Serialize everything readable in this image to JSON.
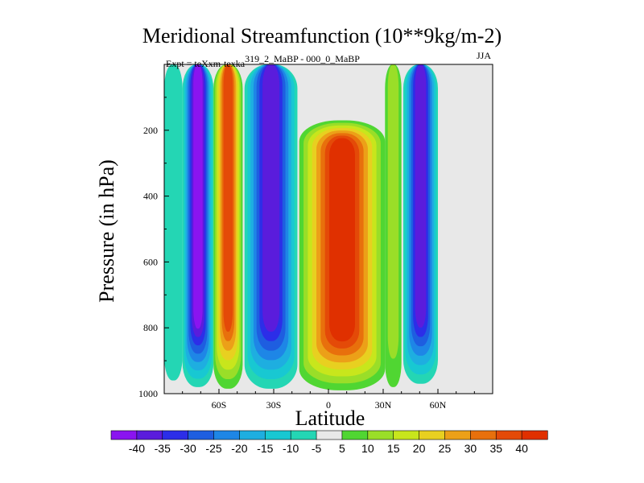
{
  "chart_data": {
    "type": "heatmap",
    "title": "Meridional Streamfunction (10**9kg/m-2)",
    "subtitle_left": "Expt = teXxm-texka",
    "subtitle_left_sup": "319_2_MaBP - 000_0_MaBP",
    "subtitle_right": "JJA",
    "xlabel": "Latitude",
    "ylabel": "Pressure (in hPa)",
    "x_ticks": [
      "60S",
      "30S",
      "0",
      "30N",
      "60N"
    ],
    "x_tick_values": [
      -60,
      -30,
      0,
      30,
      60
    ],
    "xlim": [
      -90,
      90
    ],
    "y_ticks": [
      "200",
      "400",
      "600",
      "800",
      "1000"
    ],
    "y_tick_values": [
      200,
      400,
      600,
      800,
      1000
    ],
    "ylim": [
      0,
      1000
    ],
    "y_inverted": true,
    "colorbar": {
      "labels": [
        "-40",
        "-35",
        "-30",
        "-25",
        "-20",
        "-15",
        "-10",
        "-5",
        "5",
        "10",
        "15",
        "20",
        "25",
        "30",
        "35",
        "40"
      ],
      "colors": [
        "#8a14f0",
        "#5a1cdc",
        "#2c2ee8",
        "#1e5ee0",
        "#1e86e6",
        "#1eaee0",
        "#18c8d2",
        "#24d6b4",
        "#e8e8e8",
        "#50d632",
        "#9ade28",
        "#c8e61c",
        "#e8d020",
        "#eca018",
        "#e8700c",
        "#e44a08",
        "#e03000"
      ]
    },
    "regions": [
      {
        "name": "far-south-column",
        "lat_min": -90,
        "lat_max": -80,
        "p_top": 0,
        "p_bottom": 960,
        "value": -5
      },
      {
        "name": "southern-negative-cell",
        "lat_min": -80,
        "lat_max": -63,
        "p_top": 0,
        "p_bottom": 980,
        "value": -40
      },
      {
        "name": "southern-positive-cell",
        "lat_min": -63,
        "lat_max": -47,
        "p_top": 0,
        "p_bottom": 985,
        "value": 35
      },
      {
        "name": "midlat-negative-cell",
        "lat_min": -46,
        "lat_max": -17,
        "p_top": 0,
        "p_bottom": 985,
        "value": -35
      },
      {
        "name": "hadley-cell",
        "lat_min": -16,
        "lat_max": 31,
        "p_top": 170,
        "p_bottom": 990,
        "value": 40
      },
      {
        "name": "northern-positive-column",
        "lat_min": 31,
        "lat_max": 40,
        "p_top": 0,
        "p_bottom": 980,
        "value": 10
      },
      {
        "name": "northern-negative-cell",
        "lat_min": 41,
        "lat_max": 60,
        "p_top": 0,
        "p_bottom": 970,
        "value": -35
      }
    ]
  }
}
